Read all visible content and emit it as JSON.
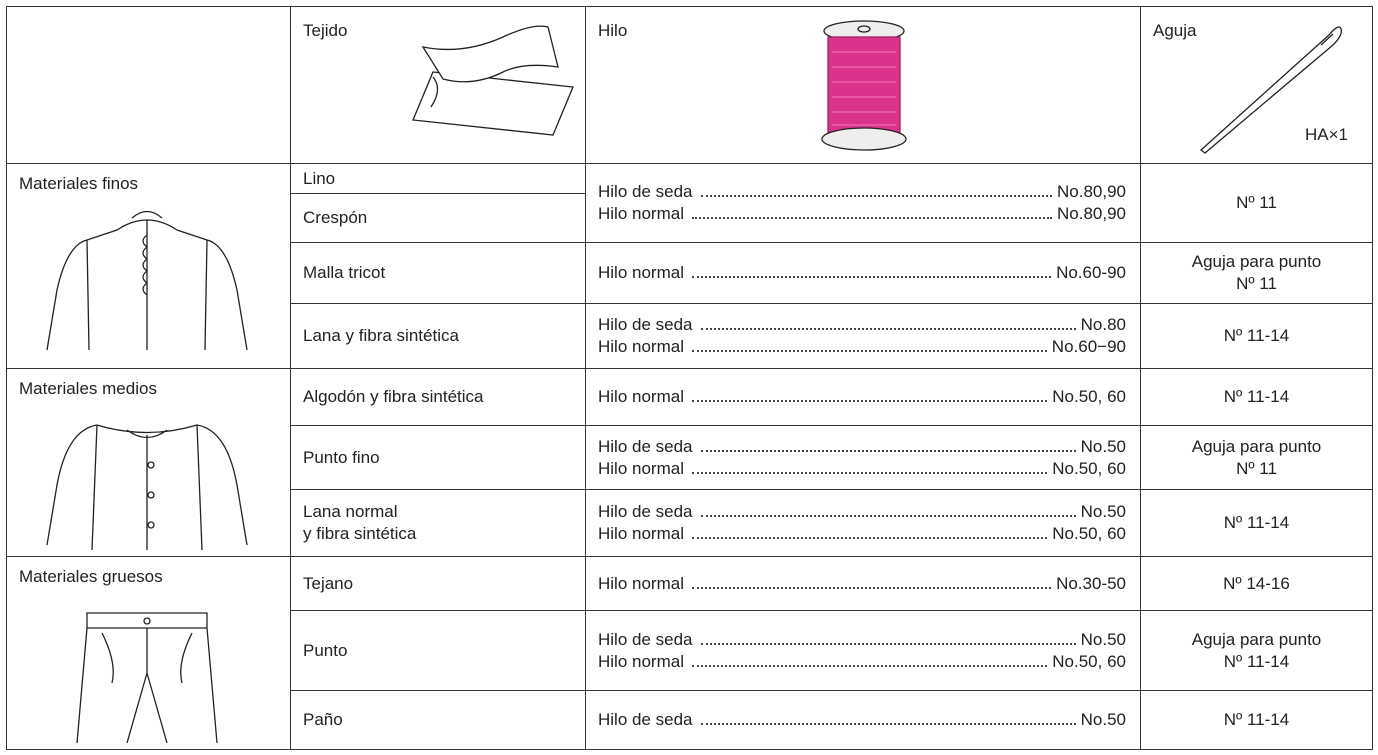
{
  "header": {
    "tejido": "Tejido",
    "hilo": "Hilo",
    "aguja": "Aguja",
    "needle_label": "HA×1"
  },
  "groups": [
    {
      "name": "Materiales finos",
      "rows": [
        {
          "fabric": [
            "Lino"
          ],
          "thread": [
            {
              "label": "Hilo de seda",
              "value": "No.80,90"
            },
            {
              "label": "Hilo normal",
              "value": "No.80,90"
            }
          ],
          "needle": [
            "Nº 11"
          ]
        },
        {
          "fabric": [
            "Crespón"
          ]
        },
        {
          "fabric": [
            "Malla tricot"
          ],
          "thread": [
            {
              "label": "Hilo normal",
              "value": "No.60-90"
            }
          ],
          "needle": [
            "Aguja para punto",
            "Nº 11"
          ]
        },
        {
          "fabric": [
            "Lana y fibra sintética"
          ],
          "thread": [
            {
              "label": "Hilo de seda",
              "value": "No.80"
            },
            {
              "label": "Hilo normal",
              "value": "No.60−90"
            }
          ],
          "needle": [
            "Nº 11-14"
          ]
        }
      ]
    },
    {
      "name": "Materiales medios",
      "rows": [
        {
          "fabric": [
            "Algodón y fibra sintética"
          ],
          "thread": [
            {
              "label": "Hilo normal",
              "value": "No.50, 60"
            }
          ],
          "needle": [
            "Nº 11-14"
          ]
        },
        {
          "fabric": [
            "Punto fino"
          ],
          "thread": [
            {
              "label": "Hilo de seda",
              "value": "No.50"
            },
            {
              "label": "Hilo normal",
              "value": "No.50, 60"
            }
          ],
          "needle": [
            "Aguja para punto",
            "Nº 11"
          ]
        },
        {
          "fabric": [
            "Lana normal",
            "y fibra sintética"
          ],
          "thread": [
            {
              "label": "Hilo de seda",
              "value": "No.50"
            },
            {
              "label": "Hilo normal",
              "value": "No.50, 60"
            }
          ],
          "needle": [
            "Nº 11-14"
          ]
        }
      ]
    },
    {
      "name": "Materiales gruesos",
      "rows": [
        {
          "fabric": [
            "Tejano"
          ],
          "thread": [
            {
              "label": "Hilo normal",
              "value": "No.30-50"
            }
          ],
          "needle": [
            "Nº 14-16"
          ]
        },
        {
          "fabric": [
            "Punto"
          ],
          "thread": [
            {
              "label": "Hilo de seda",
              "value": "No.50"
            },
            {
              "label": "Hilo normal",
              "value": "No.50, 60"
            }
          ],
          "needle": [
            "Aguja para punto",
            "Nº 11-14"
          ]
        },
        {
          "fabric": [
            "Paño"
          ],
          "thread": [
            {
              "label": "Hilo de seda",
              "value": "No.50"
            }
          ],
          "needle": [
            "Nº 11-14"
          ]
        }
      ]
    }
  ]
}
